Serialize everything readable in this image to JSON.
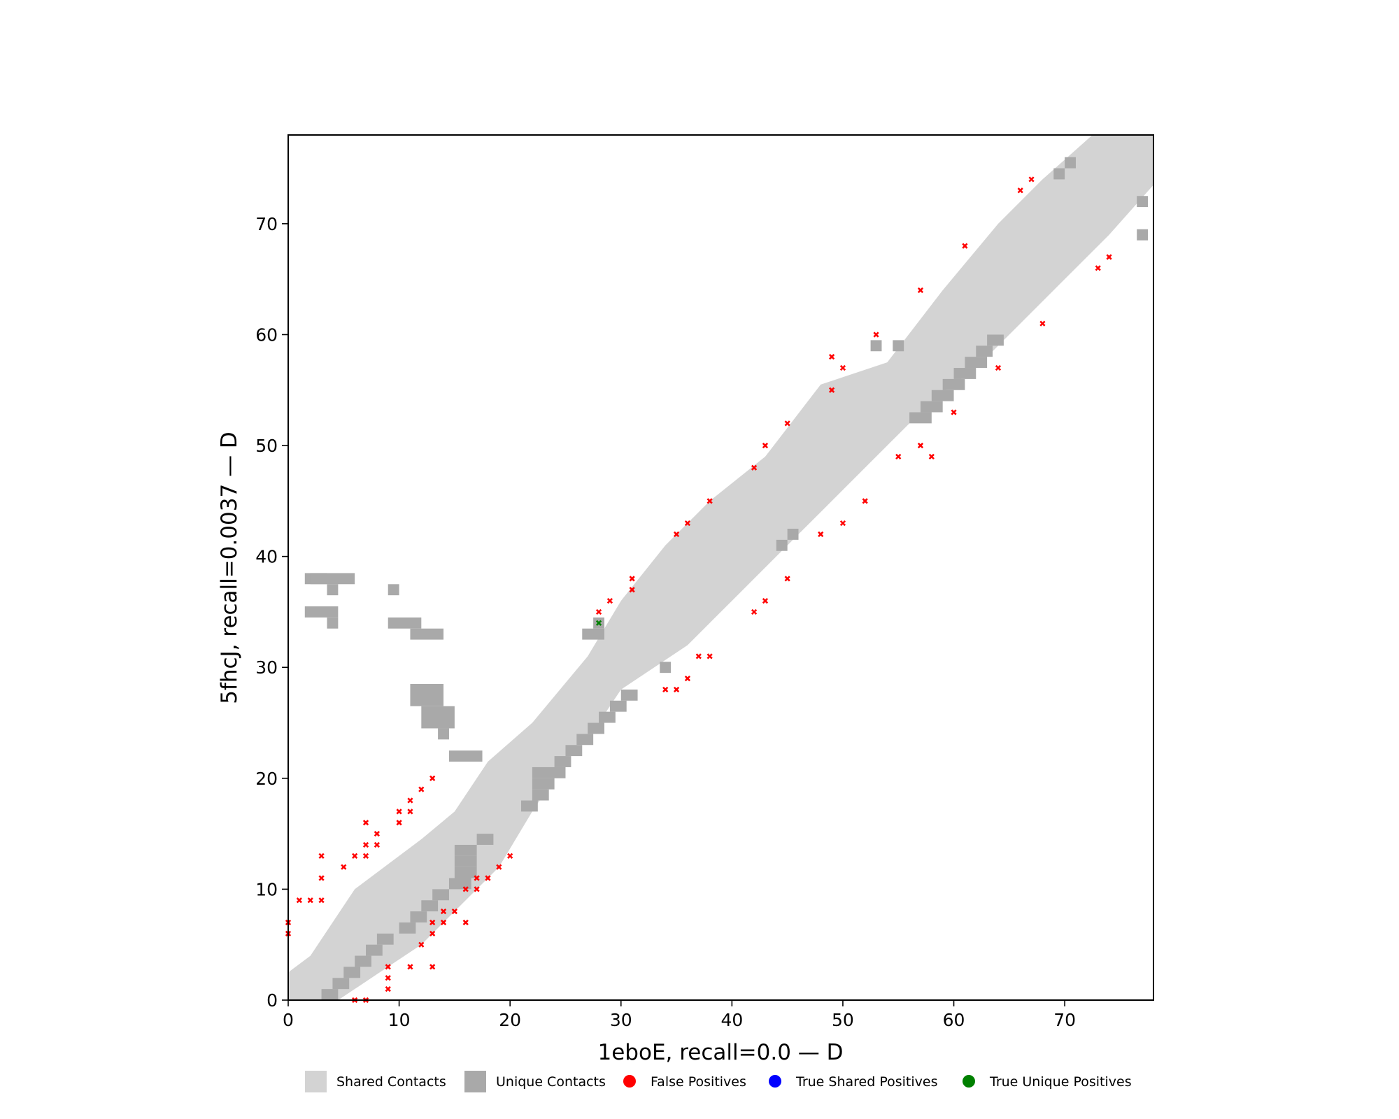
{
  "chart_data": {
    "type": "scatter",
    "xlabel": "1eboE, recall=0.0 — D",
    "ylabel": "5fhcJ, recall=0.0037 — D",
    "xlim": [
      0,
      78
    ],
    "ylim": [
      0,
      78
    ],
    "xticks": [
      0,
      10,
      20,
      30,
      40,
      50,
      60,
      70
    ],
    "yticks": [
      0,
      10,
      20,
      30,
      40,
      50,
      60,
      70
    ],
    "grid": false,
    "legend_position": "bottom",
    "legend": [
      {
        "label": "Shared Contacts",
        "marker": "square",
        "color": "#d3d3d3"
      },
      {
        "label": "Unique Contacts",
        "marker": "square",
        "color": "#a9a9a9"
      },
      {
        "label": "False Positives",
        "marker": "circle",
        "color": "#ff0000"
      },
      {
        "label": "True Shared Positives",
        "marker": "circle",
        "color": "#0000ff"
      },
      {
        "label": "True Unique Positives",
        "marker": "circle",
        "color": "#008000"
      }
    ],
    "series": [
      {
        "name": "False Positives",
        "color": "#ff0000",
        "marker": "x",
        "points": [
          [
            0,
            6
          ],
          [
            0,
            7
          ],
          [
            1,
            9
          ],
          [
            2,
            9
          ],
          [
            3,
            9
          ],
          [
            3,
            11
          ],
          [
            3,
            13
          ],
          [
            5,
            12
          ],
          [
            6,
            13
          ],
          [
            7,
            13
          ],
          [
            7,
            14
          ],
          [
            7,
            16
          ],
          [
            8,
            14
          ],
          [
            8,
            15
          ],
          [
            9,
            1
          ],
          [
            9,
            2
          ],
          [
            9,
            3
          ],
          [
            10,
            16
          ],
          [
            10,
            17
          ],
          [
            11,
            17
          ],
          [
            11,
            18
          ],
          [
            12,
            19
          ],
          [
            13,
            20
          ],
          [
            11,
            3
          ],
          [
            13,
            3
          ],
          [
            12,
            5
          ],
          [
            13,
            6
          ],
          [
            13,
            7
          ],
          [
            14,
            7
          ],
          [
            14,
            8
          ],
          [
            15,
            8
          ],
          [
            16,
            7
          ],
          [
            16,
            10
          ],
          [
            17,
            10
          ],
          [
            17,
            11
          ],
          [
            18,
            11
          ],
          [
            19,
            12
          ],
          [
            20,
            13
          ],
          [
            6,
            0
          ],
          [
            7,
            0
          ],
          [
            28,
            35
          ],
          [
            29,
            36
          ],
          [
            31,
            37
          ],
          [
            31,
            38
          ],
          [
            34,
            28
          ],
          [
            35,
            28
          ],
          [
            35,
            42
          ],
          [
            36,
            29
          ],
          [
            36,
            43
          ],
          [
            37,
            31
          ],
          [
            38,
            31
          ],
          [
            38,
            45
          ],
          [
            42,
            35
          ],
          [
            42,
            48
          ],
          [
            43,
            36
          ],
          [
            43,
            50
          ],
          [
            45,
            38
          ],
          [
            45,
            52
          ],
          [
            48,
            42
          ],
          [
            49,
            55
          ],
          [
            49,
            58
          ],
          [
            50,
            57
          ],
          [
            50,
            43
          ],
          [
            52,
            45
          ],
          [
            53,
            60
          ],
          [
            55,
            49
          ],
          [
            57,
            50
          ],
          [
            57,
            64
          ],
          [
            58,
            49
          ],
          [
            60,
            53
          ],
          [
            61,
            68
          ],
          [
            64,
            57
          ],
          [
            66,
            73
          ],
          [
            67,
            74
          ],
          [
            68,
            61
          ],
          [
            73,
            66
          ],
          [
            74,
            67
          ]
        ]
      },
      {
        "name": "True Shared Positives",
        "color": "#0000ff",
        "marker": "x",
        "points": []
      },
      {
        "name": "True Unique Positives",
        "color": "#008000",
        "marker": "x",
        "points": [
          [
            28,
            34
          ]
        ]
      }
    ]
  }
}
